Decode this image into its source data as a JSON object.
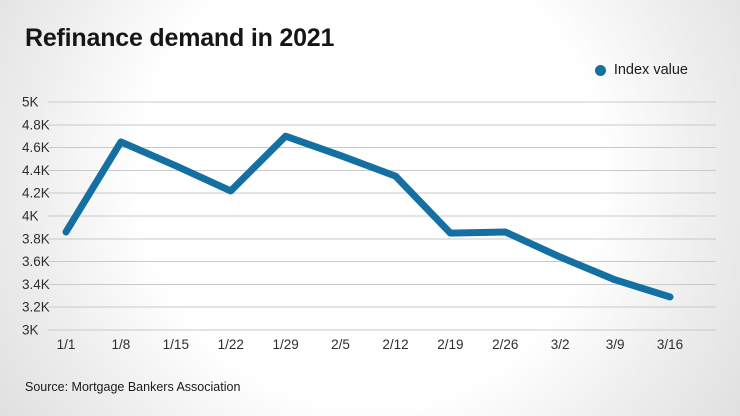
{
  "title": "Refinance demand in 2021",
  "legend": {
    "label": "Index value",
    "color": "#1470a3"
  },
  "source": "Source: Mortgage Bankers Association",
  "chart_data": {
    "type": "line",
    "title": "Refinance demand in 2021",
    "x": [
      "1/1",
      "1/8",
      "1/15",
      "1/22",
      "1/29",
      "2/5",
      "2/12",
      "2/19",
      "2/26",
      "3/2",
      "3/9",
      "3/16"
    ],
    "series": [
      {
        "name": "Index value",
        "values": [
          3860,
          4650,
          4440,
          4220,
          4700,
          4530,
          4350,
          3850,
          3860,
          3640,
          3440,
          3290
        ]
      }
    ],
    "ylim": [
      3000,
      5000
    ],
    "ytick_step": 200,
    "ytick_labels": [
      "3K",
      "3.2K",
      "3.4K",
      "3.6K",
      "3.8K",
      "4K",
      "4.2K",
      "4.4K",
      "4.6K",
      "4.8K",
      "5K"
    ],
    "grid": true,
    "legend_position": "top-right",
    "line_color": "#1470a3",
    "line_width": 7,
    "annotation": "Source: Mortgage Bankers Association"
  }
}
